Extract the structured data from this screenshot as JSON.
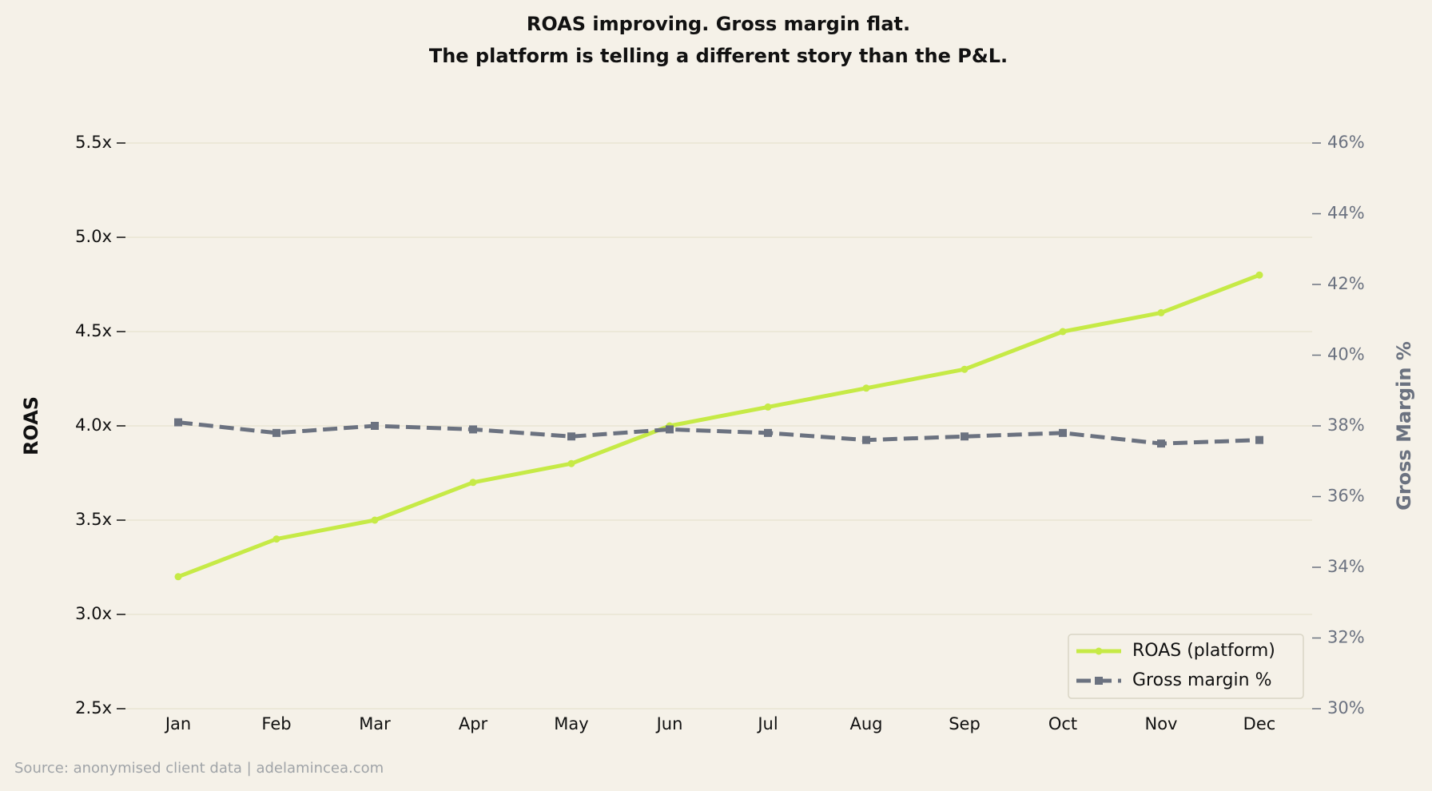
{
  "chart_data": {
    "type": "line",
    "title": "ROAS improving. Gross margin flat.",
    "subtitle": "The platform is telling a different story than the P&L.",
    "y_label": "ROAS",
    "y2_label": "Gross Margin %",
    "source": "Source: anonymised client data | adelamincea.com",
    "categories": [
      "Jan",
      "Feb",
      "Mar",
      "Apr",
      "May",
      "Jun",
      "Jul",
      "Aug",
      "Sep",
      "Oct",
      "Nov",
      "Dec"
    ],
    "series": [
      {
        "name": "ROAS (platform)",
        "color": "#c6ea46",
        "marker": "circle",
        "dash": false,
        "values": [
          3.2,
          3.4,
          3.5,
          3.7,
          3.8,
          4.0,
          4.1,
          4.2,
          4.3,
          4.5,
          4.6,
          4.8
        ]
      },
      {
        "name": "Gross margin %",
        "color": "#6b7280",
        "marker": "square",
        "dash": true,
        "axis": "y2",
        "values": [
          38.1,
          37.8,
          38.0,
          37.9,
          37.7,
          37.9,
          37.8,
          37.6,
          37.7,
          37.8,
          37.5,
          37.6
        ]
      }
    ],
    "ylim": [
      2.5,
      5.5
    ],
    "yticks": [
      {
        "value": 2.5,
        "label": "2.5x"
      },
      {
        "value": 3.0,
        "label": "3.0x"
      },
      {
        "value": 3.5,
        "label": "3.5x"
      },
      {
        "value": 4.0,
        "label": "4.0x"
      },
      {
        "value": 4.5,
        "label": "4.5x"
      },
      {
        "value": 5.0,
        "label": "5.0x"
      },
      {
        "value": 5.5,
        "label": "5.5x"
      }
    ],
    "y2lim": [
      30,
      46
    ],
    "y2ticks": [
      {
        "value": 30,
        "label": "30%"
      },
      {
        "value": 32,
        "label": "32%"
      },
      {
        "value": 34,
        "label": "34%"
      },
      {
        "value": 36,
        "label": "36%"
      },
      {
        "value": 38,
        "label": "38%"
      },
      {
        "value": 40,
        "label": "40%"
      },
      {
        "value": 42,
        "label": "42%"
      },
      {
        "value": 44,
        "label": "44%"
      },
      {
        "value": 46,
        "label": "46%"
      }
    ],
    "grid": true,
    "legend": "lower right"
  }
}
